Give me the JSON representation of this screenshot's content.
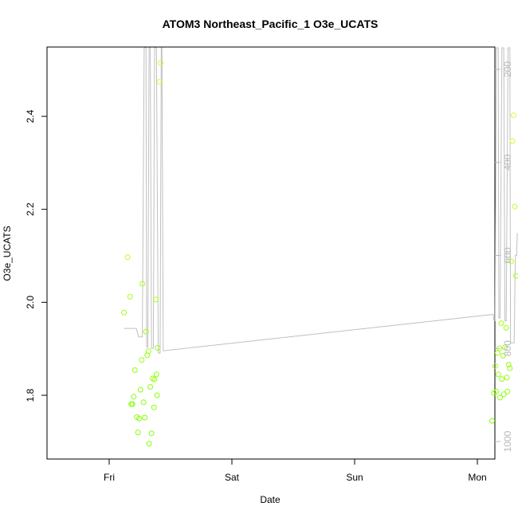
{
  "chart_data": {
    "type": "scatter",
    "title": "ATOM3 Northeast_Pacific_1 O3e_UCATS",
    "xlabel": "Date",
    "ylabel": "O3e_UCATS",
    "x_ticks": [
      "Fri",
      "Sat",
      "Sun",
      "Mon"
    ],
    "y_ticks": [
      "1.8",
      "2.0",
      "2.2",
      "2.4"
    ],
    "y_right_ticks": [
      "200",
      "400",
      "600",
      "800",
      "1000"
    ],
    "ylim": [
      1.66,
      2.55
    ],
    "y_right_range": [
      130,
      1020
    ],
    "y_right_reversed": true,
    "colors": {
      "points_low": "#7fff00",
      "points_high": "#ccff33",
      "pressure_line": "#c0c0c0"
    },
    "series": [
      {
        "points": [
          {
            "x": 3.12,
            "y": 1.978
          },
          {
            "x": 3.15,
            "y": 2.097
          },
          {
            "x": 3.17,
            "y": 2.012
          },
          {
            "x": 3.18,
            "y": 1.781
          },
          {
            "x": 3.19,
            "y": 1.781
          },
          {
            "x": 3.2,
            "y": 1.797
          },
          {
            "x": 3.21,
            "y": 1.854
          },
          {
            "x": 3.225,
            "y": 1.753
          },
          {
            "x": 3.235,
            "y": 1.72
          },
          {
            "x": 3.245,
            "y": 1.75
          },
          {
            "x": 3.255,
            "y": 1.812
          },
          {
            "x": 3.265,
            "y": 1.876
          },
          {
            "x": 3.27,
            "y": 2.04
          },
          {
            "x": 3.28,
            "y": 1.785
          },
          {
            "x": 3.29,
            "y": 1.752
          },
          {
            "x": 3.3,
            "y": 1.937
          },
          {
            "x": 3.31,
            "y": 1.886
          },
          {
            "x": 3.32,
            "y": 1.895
          },
          {
            "x": 3.325,
            "y": 1.696
          },
          {
            "x": 3.335,
            "y": 1.818
          },
          {
            "x": 3.345,
            "y": 1.718
          },
          {
            "x": 3.355,
            "y": 1.836
          },
          {
            "x": 3.365,
            "y": 1.774
          },
          {
            "x": 3.37,
            "y": 1.834
          },
          {
            "x": 3.38,
            "y": 2.006
          },
          {
            "x": 3.385,
            "y": 1.845
          },
          {
            "x": 3.39,
            "y": 1.8
          },
          {
            "x": 3.395,
            "y": 1.902
          },
          {
            "x": 3.41,
            "y": 2.474
          },
          {
            "x": 3.42,
            "y": 2.515
          },
          {
            "x": 6.12,
            "y": 1.745
          },
          {
            "x": 6.135,
            "y": 1.805
          },
          {
            "x": 6.145,
            "y": 1.863
          },
          {
            "x": 6.155,
            "y": 1.808
          },
          {
            "x": 6.165,
            "y": 1.891
          },
          {
            "x": 6.17,
            "y": 1.845
          },
          {
            "x": 6.18,
            "y": 1.901
          },
          {
            "x": 6.185,
            "y": 1.795
          },
          {
            "x": 6.195,
            "y": 1.955
          },
          {
            "x": 6.2,
            "y": 1.835
          },
          {
            "x": 6.21,
            "y": 1.885
          },
          {
            "x": 6.215,
            "y": 1.802
          },
          {
            "x": 6.225,
            "y": 1.903
          },
          {
            "x": 6.235,
            "y": 1.945
          },
          {
            "x": 6.24,
            "y": 1.838
          },
          {
            "x": 6.245,
            "y": 1.808
          },
          {
            "x": 6.255,
            "y": 1.866
          },
          {
            "x": 6.265,
            "y": 1.858
          },
          {
            "x": 6.275,
            "y": 2.088
          },
          {
            "x": 6.285,
            "y": 2.347
          },
          {
            "x": 6.295,
            "y": 2.402
          },
          {
            "x": 6.305,
            "y": 2.206
          },
          {
            "x": 6.315,
            "y": 2.057
          }
        ]
      }
    ],
    "pressure_line": [
      [
        3.12,
        757
      ],
      [
        3.16,
        757
      ],
      [
        3.22,
        757
      ],
      [
        3.24,
        775
      ],
      [
        3.27,
        775
      ],
      [
        3.285,
        80
      ],
      [
        3.3,
        80
      ],
      [
        3.305,
        797
      ],
      [
        3.315,
        797
      ],
      [
        3.325,
        80
      ],
      [
        3.335,
        80
      ],
      [
        3.345,
        800
      ],
      [
        3.36,
        800
      ],
      [
        3.37,
        80
      ],
      [
        3.385,
        80
      ],
      [
        3.4,
        810
      ],
      [
        3.415,
        810
      ],
      [
        3.425,
        80
      ],
      [
        3.43,
        80
      ],
      [
        3.44,
        805
      ],
      [
        6.12,
        727
      ],
      [
        6.13,
        727
      ],
      [
        6.135,
        740
      ],
      [
        6.145,
        740
      ],
      [
        6.155,
        80
      ],
      [
        6.17,
        80
      ],
      [
        6.175,
        735
      ],
      [
        6.185,
        735
      ],
      [
        6.2,
        80
      ],
      [
        6.215,
        80
      ],
      [
        6.225,
        741
      ],
      [
        6.235,
        741
      ],
      [
        6.25,
        80
      ],
      [
        6.265,
        80
      ],
      [
        6.27,
        788
      ],
      [
        6.29,
        788
      ],
      [
        6.3,
        788
      ],
      [
        6.31,
        600
      ],
      [
        6.32,
        600
      ],
      [
        6.325,
        552
      ]
    ],
    "grid": false,
    "legend": "none"
  }
}
